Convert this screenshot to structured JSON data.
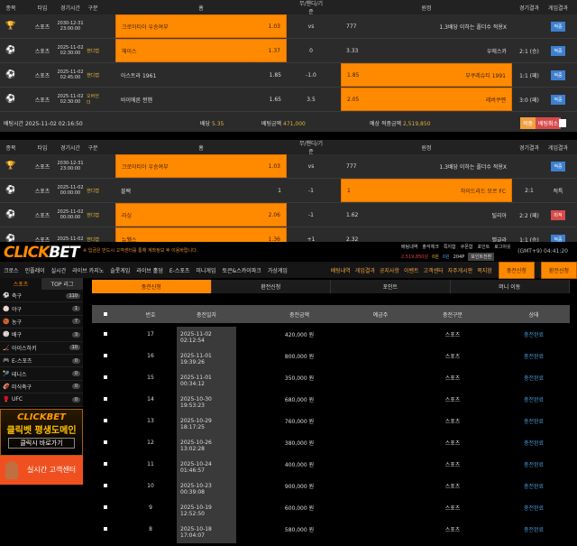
{
  "bet_headers": [
    "종목",
    "타입",
    "경기시간",
    "구분",
    "홈",
    "무/핸디/기준",
    "원정",
    "경기결과",
    "게임결과"
  ],
  "slip1": {
    "rows": [
      {
        "icon": "trophy",
        "type": "스포츠",
        "time": "2030-12-31 23:00:00",
        "kind": "",
        "home": "크로아티아 우승여부",
        "home_odds": "1.03",
        "mid": "vs",
        "away_odds": "777",
        "away": "1.3배당 이하는 폴더수 적용X",
        "result": "",
        "game": "적중",
        "sel": "home"
      },
      {
        "icon": "soccer",
        "type": "스포츠",
        "time": "2025-11-02 02:30:00",
        "kind": "핸디캡",
        "home": "헤이스",
        "home_odds": "1.37",
        "mid": "0",
        "away_odds": "3.33",
        "away": "우에스카",
        "result": "2:1 (승)",
        "game": "적중",
        "sel": "home"
      },
      {
        "icon": "soccer",
        "type": "스포츠",
        "time": "2025-11-02 02:45:00",
        "kind": "핸디캡",
        "home": "아스트라 1961",
        "home_odds": "1.85",
        "mid": "-1.0",
        "away_odds": "1.85",
        "away": "부쿠레슈티 1991",
        "result": "1:1 (패)",
        "game": "적중",
        "sel": "away"
      },
      {
        "icon": "soccer",
        "type": "스포츠",
        "time": "2025-11-02 02:30:00",
        "kind": "오버언더",
        "home": "바이에른 뮌헨",
        "home_odds": "1.65",
        "mid": "3.5",
        "away_odds": "2.05",
        "away": "레버쿠젠",
        "result": "3:0 (패)",
        "game": "적중",
        "sel": "away"
      }
    ],
    "bet_time": "배팅시간 2025-11-02 02:16:50",
    "odds_label": "배당",
    "odds": "5.35",
    "amount_label": "배팅금액",
    "amount": "471,000",
    "expected_label": "예상 적중금액",
    "expected": "2,519,850",
    "btn1": "적중",
    "btn2": "배팅취소"
  },
  "slip2": {
    "rows": [
      {
        "icon": "trophy",
        "type": "스포츠",
        "time": "2030-12-31 23:00:00",
        "kind": "",
        "home": "크로아티아 우승여부",
        "home_odds": "1.03",
        "mid": "vs",
        "away_odds": "777",
        "away": "1.3배당 이하는 폴더수 적용X",
        "result": "",
        "game": "적중",
        "sel": "home"
      },
      {
        "icon": "soccer",
        "type": "스포츠",
        "time": "2025-11-02 00:00:00",
        "kind": "핸디캡",
        "home": "블랙",
        "home_odds": "1",
        "mid": "-1",
        "away_odds": "1",
        "away": "하이드라드 모르 FC",
        "result": "2:1",
        "game": "적특",
        "sel": "away"
      },
      {
        "icon": "soccer",
        "type": "스포츠",
        "time": "2025-11-02 00:00:00",
        "kind": "핸디캡",
        "home": "라싱",
        "home_odds": "2.06",
        "mid": "-1",
        "away_odds": "1.62",
        "away": "틸리아",
        "result": "2:2 (패)",
        "game": "미적",
        "sel": "home"
      },
      {
        "icon": "soccer",
        "type": "스포츠",
        "time": "2025-11-02",
        "kind": "핸디캡",
        "home": "뉴웰스",
        "home_odds": "1.36",
        "mid": "+1",
        "away_odds": "2.32",
        "away": "벨글라",
        "result": "1:1 (승)",
        "game": "적중",
        "sel": "home"
      }
    ]
  },
  "site": {
    "logo": "CLICKBET",
    "notice": "※ 입금은 반드시 고객센터를 통해 계좌정보 후 이용바랍니다.",
    "top_links": [
      "배팅내역",
      "출석체크",
      "쪽지함",
      "쿠폰함",
      "포인트",
      "로그아웃"
    ],
    "balance": "2,519,850원",
    "coin1": "0원",
    "coin2": "0원",
    "point": "204P",
    "convert_btn": "포인트전환",
    "clock": "(GMT+9) 04:41:20",
    "nav": [
      "크로스",
      "인플레이",
      "실시간",
      "라이브 카지노",
      "슬롯게임",
      "라이브 홀덤",
      "E-스포츠",
      "미니게임",
      "토큰&스카이파크",
      "가상게임"
    ],
    "nav_right": [
      "배팅내역",
      "게임결과",
      "공지사항",
      "이벤트",
      "고객센터",
      "자주게시판",
      "쪽지함"
    ],
    "deposit_btn": "충전신청",
    "withdraw_btn": "환전신청"
  },
  "sidebar": {
    "tabs": [
      "스포츠",
      "TOP 리그"
    ],
    "items": [
      {
        "label": "축구",
        "count": "110"
      },
      {
        "label": "야구",
        "count": "1"
      },
      {
        "label": "농구",
        "count": "7"
      },
      {
        "label": "배구",
        "count": "3"
      },
      {
        "label": "아이스하키",
        "count": "10"
      },
      {
        "label": "E-스포츠",
        "count": "0"
      },
      {
        "label": "테니스",
        "count": "0"
      },
      {
        "label": "미식축구",
        "count": "0"
      },
      {
        "label": "UFC",
        "count": "0"
      }
    ],
    "banner_logo": "CLICKBET",
    "banner_title": "클릭벳 평생도메인",
    "banner_sub": "클릭시 바로가기",
    "support": "실시간 고객센터"
  },
  "tabs": [
    "충전신청",
    "환전신청",
    "포인트",
    "머니 이동"
  ],
  "table": {
    "headers": [
      "번호",
      "충전일자",
      "충전금액",
      "예금주",
      "충전구분",
      "상태"
    ],
    "rows": [
      {
        "no": "17",
        "date": "2025-11-02 02:12:54",
        "amount": "420,000 원",
        "holder": "",
        "kind": "스포츠",
        "status": "충전완료"
      },
      {
        "no": "16",
        "date": "2025-11-01 19:39:26",
        "amount": "800,000 원",
        "holder": "",
        "kind": "스포츠",
        "status": "충전완료"
      },
      {
        "no": "15",
        "date": "2025-11-01 00:34:12",
        "amount": "350,000 원",
        "holder": "",
        "kind": "스포츠",
        "status": "충전완료"
      },
      {
        "no": "14",
        "date": "2025-10-30 19:53:23",
        "amount": "680,000 원",
        "holder": "",
        "kind": "스포츠",
        "status": "충전완료"
      },
      {
        "no": "13",
        "date": "2025-10-29 18:17:25",
        "amount": "760,000 원",
        "holder": "",
        "kind": "스포츠",
        "status": "충전완료"
      },
      {
        "no": "12",
        "date": "2025-10-26 13:02:28",
        "amount": "380,000 원",
        "holder": "",
        "kind": "스포츠",
        "status": "충전완료"
      },
      {
        "no": "11",
        "date": "2025-10-24 01:46:57",
        "amount": "400,000 원",
        "holder": "",
        "kind": "스포츠",
        "status": "충전완료"
      },
      {
        "no": "10",
        "date": "2025-10-23 00:39:08",
        "amount": "900,000 원",
        "holder": "",
        "kind": "스포츠",
        "status": "충전완료"
      },
      {
        "no": "9",
        "date": "2025-10-19 12:52:50",
        "amount": "600,000 원",
        "holder": "",
        "kind": "스포츠",
        "status": "충전완료"
      },
      {
        "no": "8",
        "date": "2025-10-18 17:04:07",
        "amount": "580,000 원",
        "holder": "",
        "kind": "스포츠",
        "status": "충전완료"
      }
    ]
  },
  "colors": {
    "accent": "#ff8a00",
    "status": "#4a9ad8",
    "badge": "#3d7fd0"
  }
}
